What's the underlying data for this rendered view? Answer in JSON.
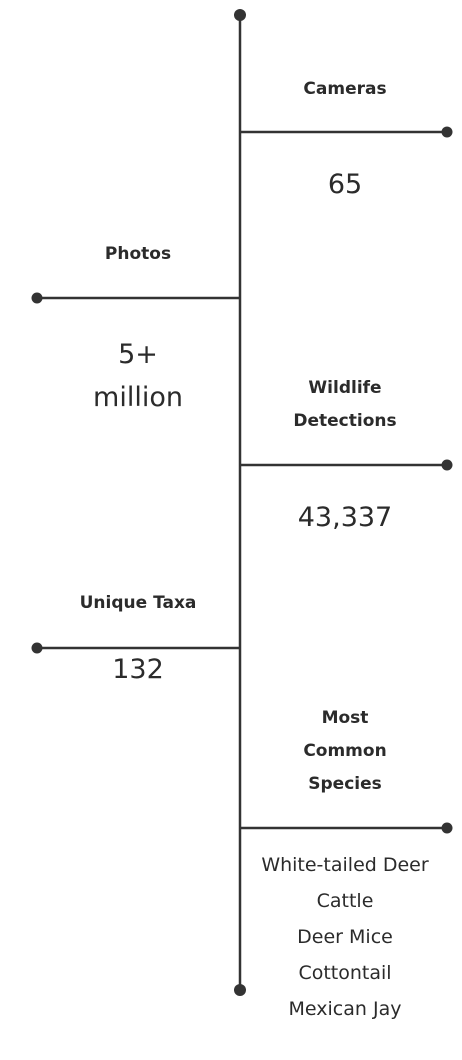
{
  "items": [
    {
      "label": "Cameras",
      "value": [
        "65"
      ]
    },
    {
      "label": "Photos",
      "value": [
        "5+",
        "million"
      ]
    },
    {
      "label": "Wildlife Detections",
      "value": [
        "43,337"
      ]
    },
    {
      "label": "Unique Taxa",
      "value": [
        "132"
      ]
    },
    {
      "label": "Most Common Species",
      "value": [
        "White-tailed Deer",
        "Cattle",
        "Deer Mice",
        "Cottontail",
        "Mexican Jay"
      ]
    }
  ]
}
